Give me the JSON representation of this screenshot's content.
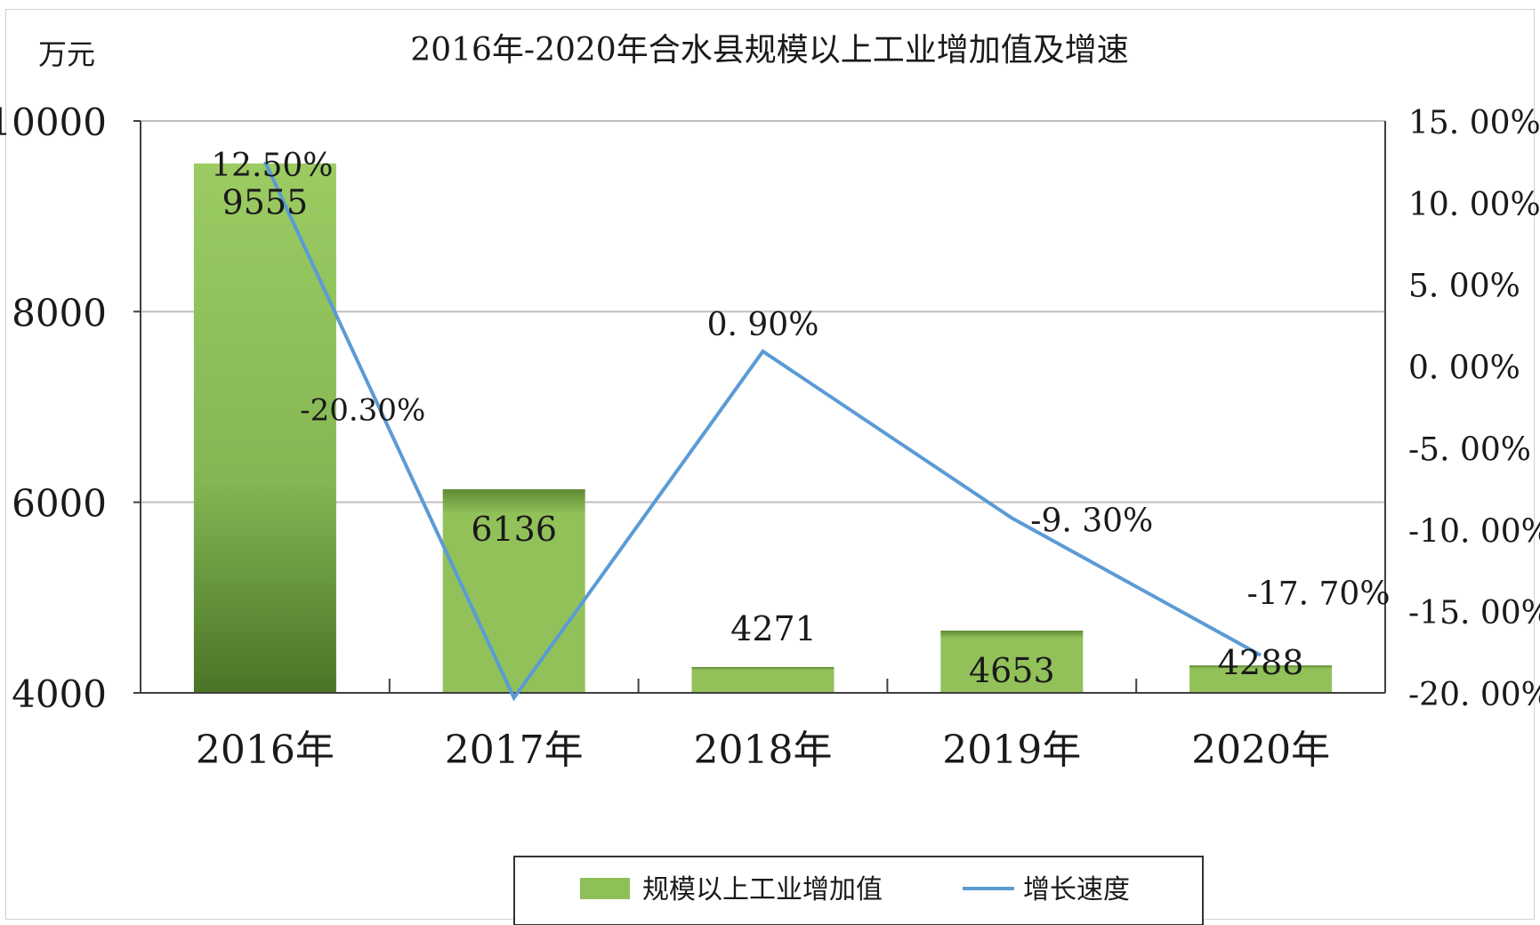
{
  "chart_data": {
    "type": "bar+line",
    "title": "2016年-2020年合水县规模以上工业增加值及增速",
    "y_left_unit": "万元",
    "categories": [
      "2016年",
      "2017年",
      "2018年",
      "2019年",
      "2020年"
    ],
    "series": [
      {
        "name": "规模以上工业增加值",
        "type": "bar",
        "axis": "left",
        "values": [
          9555,
          6136,
          4271,
          4653,
          4288
        ],
        "labels": [
          "9555",
          "6136",
          "4271",
          "4653",
          "4288"
        ]
      },
      {
        "name": "增长速度",
        "type": "line",
        "axis": "right",
        "values": [
          12.5,
          -20.3,
          0.9,
          -9.3,
          -17.7
        ],
        "labels": [
          "12.50%",
          "-20.30%",
          "0. 90%",
          "-9. 30%",
          "-17. 70%"
        ]
      }
    ],
    "y_left": {
      "range": [
        4000,
        10000
      ],
      "ticks": [
        "4000",
        "6000",
        "8000",
        "10000"
      ]
    },
    "y_right": {
      "range": [
        -20,
        15
      ],
      "ticks": [
        "15. 00%",
        "10. 00%",
        "5. 00%",
        "0. 00%",
        "-5. 00%",
        "-10. 00%",
        "-15. 00%",
        "-20. 00%"
      ]
    },
    "grid": true,
    "legend": "bottom",
    "colors": {
      "bar": "#8fbf57",
      "bar_dark": "#4f7a2a",
      "line": "#5b9bd5",
      "grid": "#bfbfbf",
      "axis": "#404040"
    }
  }
}
